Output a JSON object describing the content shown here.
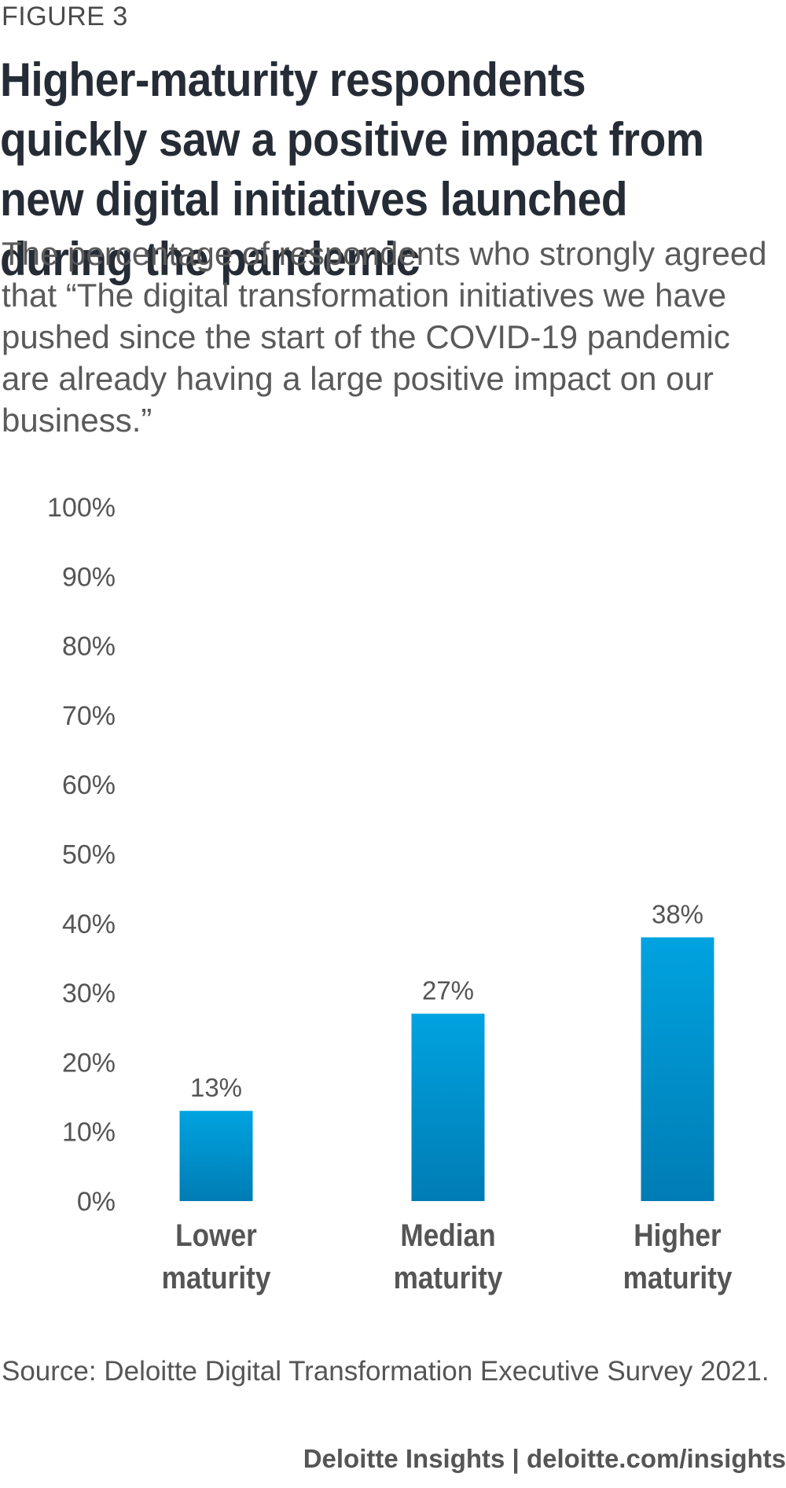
{
  "figure_label": "FIGURE 3",
  "title": "Higher-maturity respondents quickly saw a positive impact from new digital initiatives launched during the pandemic",
  "subtitle": "The percentage of respondents who strongly agreed that “The digital transformation initiatives we have pushed since the start of the COVID-19 pandemic are already having a large positive impact on our business.”",
  "source": "Source: Deloitte Digital Transformation Executive Survey 2021.",
  "footer": "Deloitte Insights | deloitte.com/insights",
  "colors": {
    "bar_top": "#00a3e0",
    "bar_bottom": "#007cb4",
    "axis_text": "#555555",
    "category_text": "#555555"
  },
  "chart_data": {
    "type": "bar",
    "categories": [
      [
        "Lower",
        "maturity"
      ],
      [
        "Median",
        "maturity"
      ],
      [
        "Higher",
        "maturity"
      ]
    ],
    "values": [
      13,
      27,
      38
    ],
    "value_labels": [
      "13%",
      "27%",
      "38%"
    ],
    "ylim": [
      0,
      100
    ],
    "yticks": [
      0,
      10,
      20,
      30,
      40,
      50,
      60,
      70,
      80,
      90,
      100
    ],
    "ytick_labels": [
      "0%",
      "10%",
      "20%",
      "30%",
      "40%",
      "50%",
      "60%",
      "70%",
      "80%",
      "90%",
      "100%"
    ],
    "grid": false,
    "legend": "none"
  }
}
